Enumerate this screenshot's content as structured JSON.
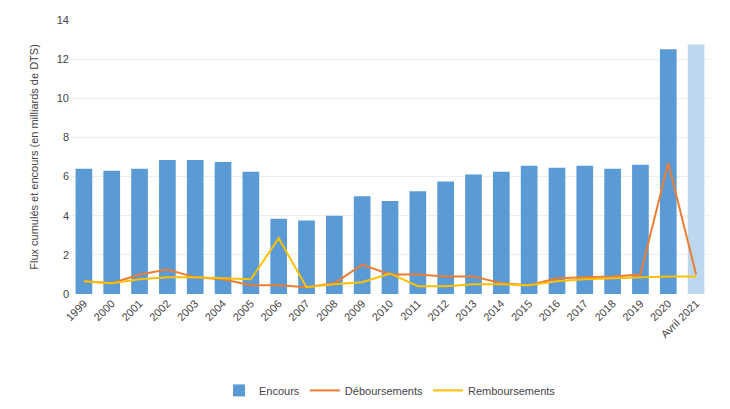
{
  "chart_data": {
    "type": "bar",
    "y_label": "Flux cumulés et encours (en milliards de DTS)",
    "categories": [
      "1999",
      "2000",
      "2001",
      "2002",
      "2003",
      "2004",
      "2005",
      "2006",
      "2007",
      "2008",
      "2009",
      "2010",
      "2011",
      "2012",
      "2013",
      "2014",
      "2015",
      "2016",
      "2017",
      "2018",
      "2019",
      "2020",
      "Avril 2021"
    ],
    "series": [
      {
        "name": "Encours",
        "type": "bar",
        "colors": [
          "#5B9BD5",
          "#5B9BD5",
          "#5B9BD5",
          "#5B9BD5",
          "#5B9BD5",
          "#5B9BD5",
          "#5B9BD5",
          "#5B9BD5",
          "#5B9BD5",
          "#5B9BD5",
          "#5B9BD5",
          "#5B9BD5",
          "#5B9BD5",
          "#5B9BD5",
          "#5B9BD5",
          "#5B9BD5",
          "#5B9BD5",
          "#5B9BD5",
          "#5B9BD5",
          "#5B9BD5",
          "#5B9BD5",
          "#5B9BD5",
          "#BDD7EE"
        ],
        "values": [
          6.4,
          6.3,
          6.4,
          6.85,
          6.85,
          6.75,
          6.25,
          3.85,
          3.75,
          4.0,
          5.0,
          4.75,
          5.25,
          5.75,
          6.1,
          6.25,
          6.55,
          6.45,
          6.55,
          6.4,
          6.6,
          12.5,
          12.75
        ]
      },
      {
        "name": "Déboursements",
        "type": "line",
        "color": "#ED7D31",
        "values": [
          0.65,
          0.55,
          1.0,
          1.25,
          0.85,
          0.75,
          0.45,
          0.45,
          0.35,
          0.55,
          1.5,
          1.0,
          1.0,
          0.9,
          0.9,
          0.55,
          0.45,
          0.8,
          0.85,
          0.9,
          1.0,
          6.7,
          1.0
        ]
      },
      {
        "name": "Remboursements",
        "type": "line",
        "color": "#FFC000",
        "values": [
          0.65,
          0.55,
          0.75,
          0.85,
          0.85,
          0.8,
          0.75,
          2.85,
          0.35,
          0.5,
          0.6,
          1.05,
          0.4,
          0.4,
          0.5,
          0.5,
          0.45,
          0.65,
          0.75,
          0.8,
          0.85,
          0.9,
          0.9
        ]
      }
    ],
    "ylim": [
      0,
      14
    ],
    "yticks": [
      0,
      2,
      4,
      6,
      8,
      10,
      12,
      14
    ],
    "grid": true,
    "legend": "bottom"
  }
}
